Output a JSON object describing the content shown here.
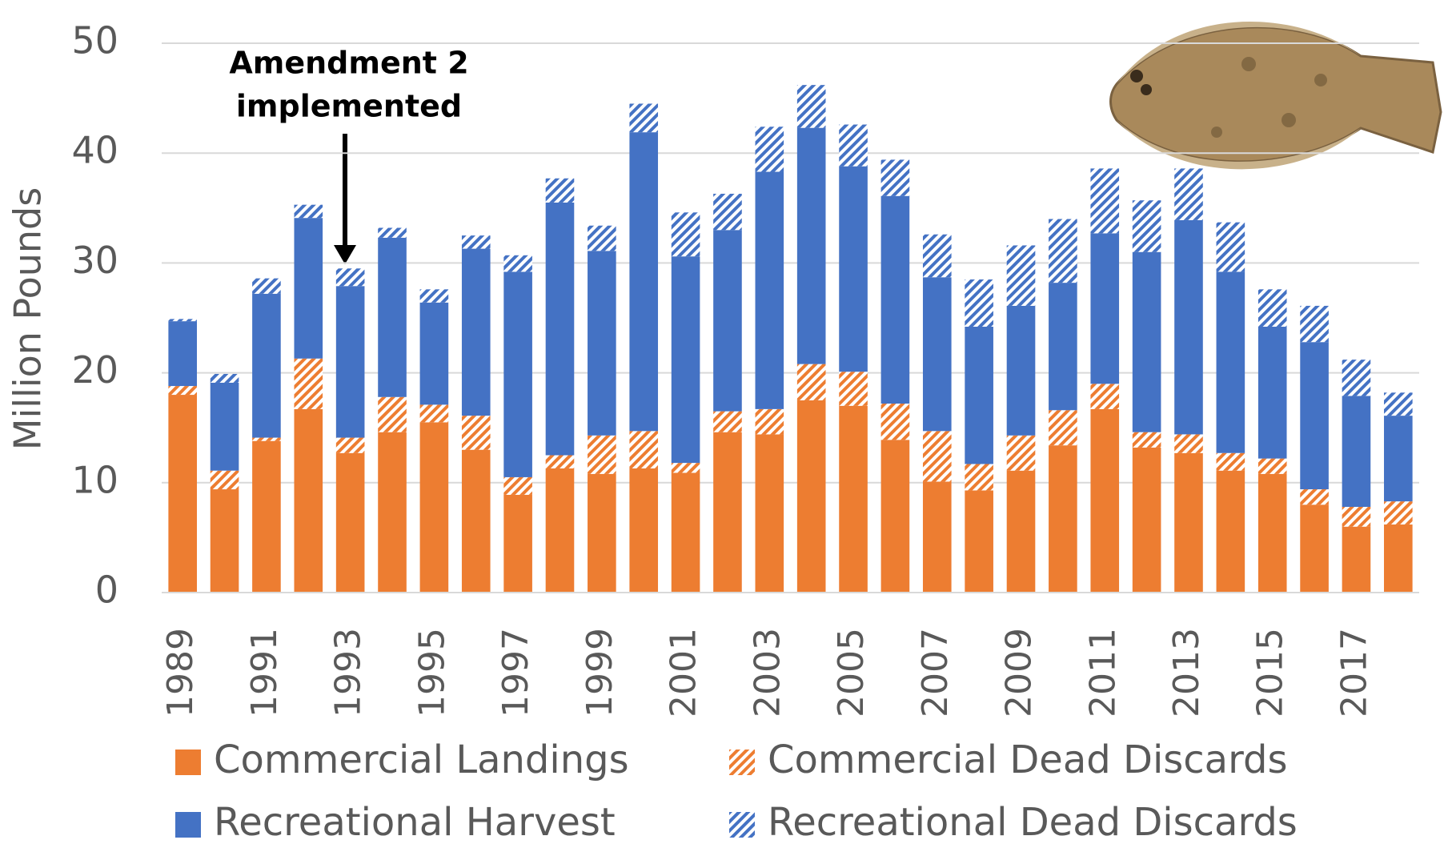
{
  "chart_data": {
    "type": "stacked-bar",
    "y_label": "Million Pounds",
    "annotation": [
      "Amendment 2",
      "implemented"
    ],
    "categories": [
      "1989",
      null,
      "1991",
      null,
      "1993",
      null,
      "1995",
      null,
      "1997",
      null,
      "1999",
      null,
      "2001",
      null,
      "2003",
      null,
      "2005",
      null,
      "2007",
      null,
      "2009",
      null,
      "2011",
      null,
      "2013",
      null,
      "2015",
      null,
      "2017",
      null
    ],
    "series": [
      {
        "name": "Commercial Landings",
        "color": "#ed7d31",
        "hatched": false,
        "values": [
          18.0,
          9.4,
          13.8,
          16.7,
          12.7,
          14.6,
          15.5,
          13.0,
          8.9,
          11.3,
          10.8,
          11.3,
          10.9,
          14.6,
          14.4,
          17.5,
          17.0,
          13.9,
          10.1,
          9.3,
          11.1,
          13.4,
          16.7,
          13.2,
          12.7,
          11.1,
          10.8,
          8.0,
          6.0,
          6.2
        ]
      },
      {
        "name": "Commercial Dead Discards",
        "color": "#ed7d31",
        "hatched": true,
        "values": [
          0.8,
          1.7,
          0.3,
          4.6,
          1.4,
          3.2,
          1.6,
          3.1,
          1.6,
          1.2,
          3.5,
          3.4,
          0.9,
          1.9,
          2.3,
          3.3,
          3.1,
          3.3,
          4.6,
          2.4,
          3.2,
          3.2,
          2.3,
          1.4,
          1.7,
          1.6,
          1.4,
          1.4,
          1.8,
          2.1
        ]
      },
      {
        "name": "Recreational Harvest",
        "color": "#4472c4",
        "hatched": false,
        "values": [
          5.9,
          8.0,
          13.1,
          12.8,
          13.8,
          14.5,
          9.3,
          15.2,
          18.7,
          23.0,
          16.8,
          27.2,
          18.8,
          16.5,
          21.6,
          21.5,
          18.7,
          18.9,
          14.0,
          12.5,
          11.8,
          11.6,
          13.7,
          16.4,
          19.5,
          16.5,
          12.0,
          13.4,
          10.1,
          7.8
        ]
      },
      {
        "name": "Recreational Dead Discards",
        "color": "#4472c4",
        "hatched": true,
        "values": [
          0.2,
          0.8,
          1.4,
          1.2,
          1.6,
          0.9,
          1.2,
          1.2,
          1.5,
          2.2,
          2.3,
          2.6,
          4.0,
          3.3,
          4.1,
          3.9,
          3.8,
          3.3,
          3.9,
          4.3,
          5.5,
          5.8,
          5.9,
          4.7,
          4.7,
          4.5,
          3.4,
          3.3,
          3.3,
          2.1
        ]
      }
    ],
    "ylim": [
      0,
      50
    ],
    "yticks": [
      0,
      10,
      20,
      30,
      40,
      50
    ],
    "grid": true
  }
}
